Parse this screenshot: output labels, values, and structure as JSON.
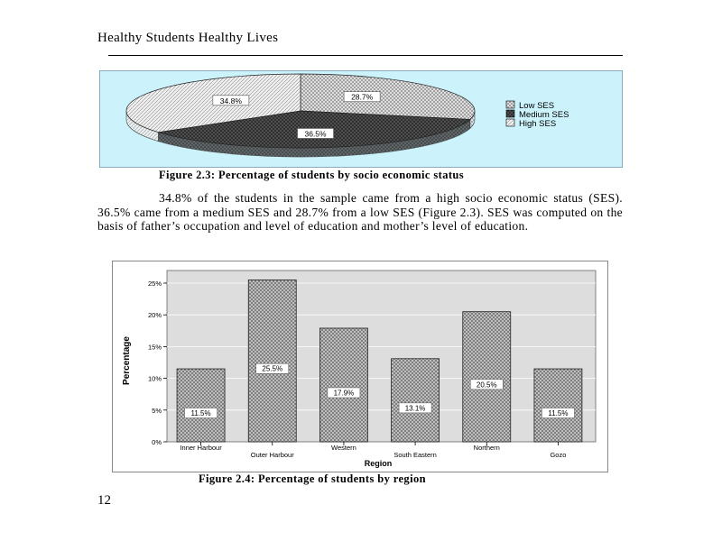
{
  "header": {
    "title": "Healthy Students Healthy Lives"
  },
  "figure_2_3": {
    "caption": "Figure 2.3: Percentage of students by socio economic status",
    "legend": [
      "Low SES",
      "Medium SES",
      "High SES"
    ]
  },
  "paragraph": {
    "text": "34.8% of the students in the sample came from a high socio economic status (SES). 36.5% came from a medium SES and 28.7% from a low SES (Figure 2.3). SES was computed on the basis of father’s occupation and level of education and mother’s level of education."
  },
  "figure_2_4": {
    "caption": "Figure 2.4: Percentage of students by region"
  },
  "page_number": "12",
  "chart_data": [
    {
      "type": "pie",
      "title": "",
      "slices": [
        {
          "label": "Low SES",
          "value": 28.7,
          "data_label": "28.7%"
        },
        {
          "label": "Medium SES",
          "value": 36.5,
          "data_label": "36.5%"
        },
        {
          "label": "High SES",
          "value": 34.8,
          "data_label": "34.8%"
        }
      ],
      "legend_position": "right"
    },
    {
      "type": "bar",
      "categories": [
        "Inner Harbour",
        "Outer Harbour",
        "Western",
        "South Eastern",
        "Northern",
        "Gozo"
      ],
      "values": [
        11.5,
        25.5,
        17.9,
        13.1,
        20.5,
        11.5
      ],
      "data_labels": [
        "11.5%",
        "25.5%",
        "17.9%",
        "13.1%",
        "20.5%",
        "11.5%"
      ],
      "xlabel": "Region",
      "ylabel": "Percentage",
      "ylim": [
        0,
        25
      ],
      "yticks": [
        "0%",
        "5%",
        "10%",
        "15%",
        "20%",
        "25%"
      ],
      "grid": true,
      "colors": {
        "plot_bg": "#dddddd",
        "bar": "#b8b8b8"
      }
    }
  ]
}
